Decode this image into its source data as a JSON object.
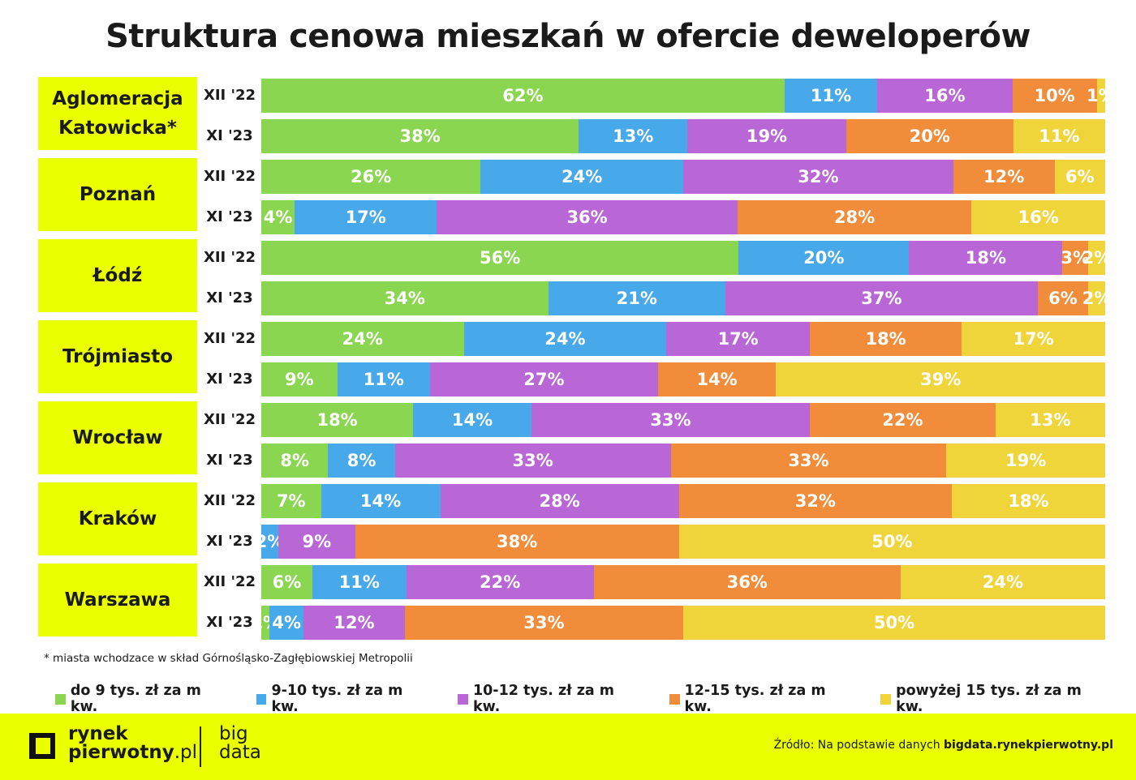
{
  "chart_data": {
    "type": "bar",
    "orientation": "horizontal",
    "stacked": "100%",
    "title": "Struktura cenowa mieszkań w ofercie deweloperów",
    "legend_position": "bottom",
    "series_names": [
      "do 9 tys. zł za m kw.",
      "9-10 tys. zł za m kw.",
      "10-12 tys. zł za m kw.",
      "12-15 tys. zł za m kw.",
      "powyżej 15 tys. zł za m kw."
    ],
    "colors": [
      "#8bd650",
      "#47a9ea",
      "#b967d6",
      "#f08c3a",
      "#f0d53a"
    ],
    "groups": [
      {
        "city": "Aglomeracja Katowicka*",
        "rows": [
          {
            "period": "XII '22",
            "values": [
              62,
              11,
              16,
              10,
              1
            ]
          },
          {
            "period": "XI '23",
            "values": [
              38,
              13,
              19,
              20,
              11
            ]
          }
        ]
      },
      {
        "city": "Poznań",
        "rows": [
          {
            "period": "XII '22",
            "values": [
              26,
              24,
              32,
              12,
              6
            ]
          },
          {
            "period": "XI '23",
            "values": [
              4,
              17,
              36,
              28,
              16
            ]
          }
        ]
      },
      {
        "city": "Łódź",
        "rows": [
          {
            "period": "XII '22",
            "values": [
              56,
              20,
              18,
              3,
              2
            ]
          },
          {
            "period": "XI '23",
            "values": [
              34,
              21,
              37,
              6,
              2
            ]
          }
        ]
      },
      {
        "city": "Trójmiasto",
        "rows": [
          {
            "period": "XII '22",
            "values": [
              24,
              24,
              17,
              18,
              17
            ]
          },
          {
            "period": "XI '23",
            "values": [
              9,
              11,
              27,
              14,
              39
            ]
          }
        ]
      },
      {
        "city": "Wrocław",
        "rows": [
          {
            "period": "XII '22",
            "values": [
              18,
              14,
              33,
              22,
              13
            ]
          },
          {
            "period": "XI '23",
            "values": [
              8,
              8,
              33,
              33,
              19
            ]
          }
        ]
      },
      {
        "city": "Kraków",
        "rows": [
          {
            "period": "XII '22",
            "values": [
              7,
              14,
              28,
              32,
              18
            ]
          },
          {
            "period": "XI '23",
            "values": [
              0,
              2,
              9,
              38,
              50
            ]
          }
        ]
      },
      {
        "city": "Warszawa",
        "rows": [
          {
            "period": "XII '22",
            "values": [
              6,
              11,
              22,
              36,
              24
            ]
          },
          {
            "period": "XI '23",
            "values": [
              1,
              4,
              12,
              33,
              50
            ]
          }
        ]
      }
    ]
  },
  "note": "* miasta wchodzace w skład Górnośląsko-Zagłębiowskiej Metropolii",
  "footer": {
    "logo_line1": "rynek",
    "logo_line2": "pierwotny",
    "logo_suffix": ".pl",
    "bigdata_line1": "big",
    "bigdata_line2": "data",
    "source_prefix": "Źródło: Na podstawie danych ",
    "source_link": "bigdata.rynekpierwotny.pl"
  }
}
